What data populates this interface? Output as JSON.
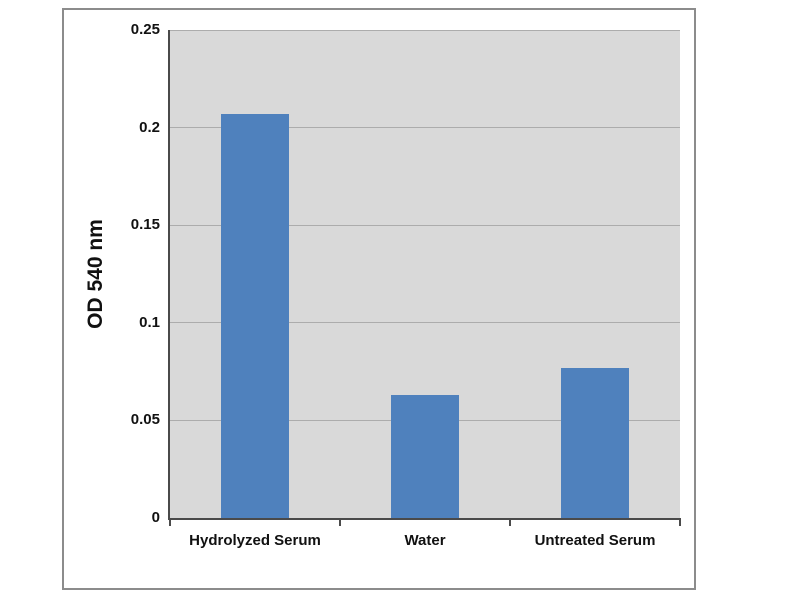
{
  "chart_data": {
    "type": "bar",
    "title": "",
    "ylabel": "OD 540 nm",
    "xlabel": "",
    "categories": [
      "Hydrolyzed Serum",
      "Water",
      "Untreated Serum"
    ],
    "values": [
      0.207,
      0.063,
      0.077
    ],
    "ylim": [
      0,
      0.25
    ],
    "yticks": [
      {
        "value": 0,
        "label": "0"
      },
      {
        "value": 0.05,
        "label": "0.05"
      },
      {
        "value": 0.1,
        "label": "0.1"
      },
      {
        "value": 0.15,
        "label": "0.15"
      },
      {
        "value": 0.2,
        "label": "0.2"
      },
      {
        "value": 0.25,
        "label": "0.25"
      }
    ],
    "grid": true,
    "legend": null,
    "colors": {
      "bar": "#4F81BD",
      "plot_background": "#D9D9D9",
      "gridline": "#ACACAC",
      "axis": "#4a4a4a",
      "frame_border": "#8c8c8c"
    }
  }
}
